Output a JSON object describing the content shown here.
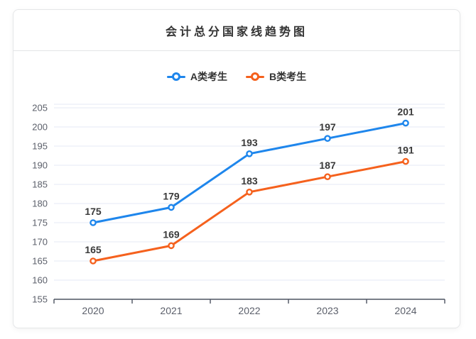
{
  "card": {
    "title": "会计总分国家线趋势图"
  },
  "chart_data": {
    "type": "line",
    "title": "会计总分国家线趋势图",
    "categories": [
      "2020",
      "2021",
      "2022",
      "2023",
      "2024"
    ],
    "series": [
      {
        "name": "A类考生",
        "color": "#1e86ec",
        "values": [
          175,
          179,
          193,
          197,
          201
        ]
      },
      {
        "name": "B类考生",
        "color": "#f5611d",
        "values": [
          165,
          169,
          183,
          187,
          191
        ]
      }
    ],
    "ylim": [
      155,
      205
    ],
    "yticks": [
      155,
      160,
      165,
      170,
      175,
      180,
      185,
      190,
      195,
      200,
      205
    ],
    "grid": true,
    "legend_position": "top",
    "data_labels": true,
    "style": {
      "grid_color": "#e4e9f4",
      "axis_color": "#4d5361",
      "tick_label_color": "#5b5f6a",
      "data_label_color": "#3a3a3a",
      "marker_fill": "#ffffff"
    }
  }
}
